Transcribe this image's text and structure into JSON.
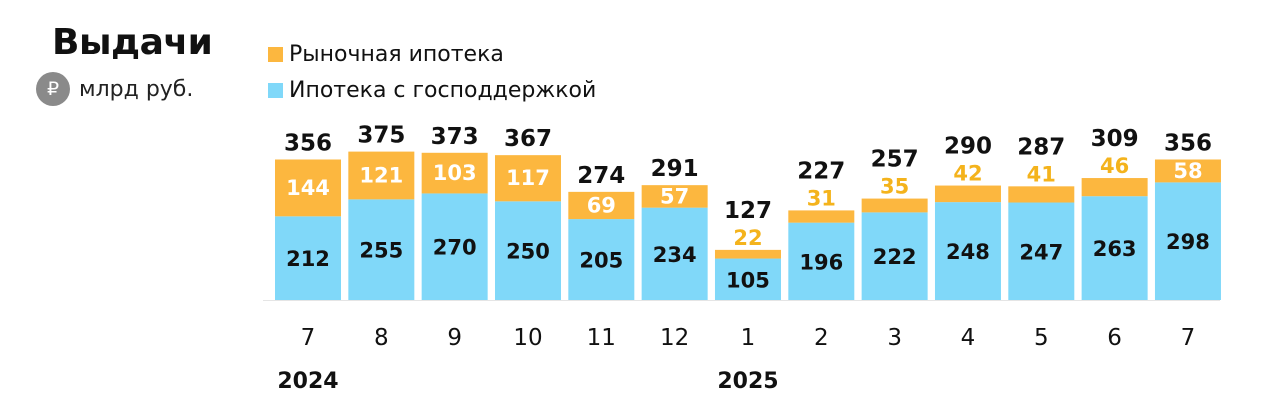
{
  "header": {
    "title": "Выдачи",
    "unit_icon": "₽",
    "unit_text": "млрд руб."
  },
  "colors": {
    "market": "#fcb73f",
    "state": "#80d8f9",
    "market_label": "#ffffff",
    "market_label_outside": "#f4b31c",
    "state_label": "#111111",
    "axis": "#e5e5e5"
  },
  "chart_data": {
    "type": "bar",
    "stacked": true,
    "categories": [
      "7",
      "8",
      "9",
      "10",
      "11",
      "12",
      "1",
      "2",
      "3",
      "4",
      "5",
      "6",
      "7"
    ],
    "year_labels": [
      {
        "label": "2024",
        "category_index": 0
      },
      {
        "label": "2025",
        "category_index": 6
      }
    ],
    "series": [
      {
        "name": "Ипотека с господдержкой",
        "color": "#80d8f9",
        "values": [
          212,
          255,
          270,
          250,
          205,
          234,
          105,
          196,
          222,
          248,
          247,
          263,
          298
        ]
      },
      {
        "name": "Рыночная ипотека",
        "color": "#fcb73f",
        "values": [
          144,
          121,
          103,
          117,
          69,
          57,
          22,
          31,
          35,
          42,
          41,
          46,
          58
        ]
      }
    ],
    "totals": [
      356,
      375,
      373,
      367,
      274,
      291,
      127,
      227,
      257,
      290,
      287,
      309,
      356
    ],
    "legend": [
      "Рыночная ипотека",
      "Ипотека с господдержкой"
    ],
    "legend_position": "top-left",
    "grid": false
  }
}
